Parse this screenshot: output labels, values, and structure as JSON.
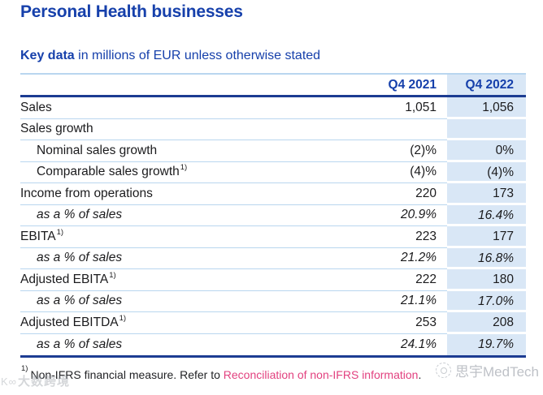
{
  "page": {
    "title": "Personal Health businesses"
  },
  "subtitle": {
    "bold": "Key data",
    "rest": " in millions of EUR unless otherwise stated"
  },
  "table": {
    "col_q4_2021": "Q4 2021",
    "col_q4_2022": "Q4 2022",
    "sup_mark": "1)",
    "rows": [
      {
        "label": "Sales",
        "q4_2021": "1,051",
        "q4_2022": "1,056"
      },
      {
        "label": "Sales growth",
        "q4_2021": "",
        "q4_2022": ""
      },
      {
        "label": "Nominal sales growth",
        "q4_2021": "(2)%",
        "q4_2022": "0%"
      },
      {
        "label": "Comparable sales growth",
        "q4_2021": "(4)%",
        "q4_2022": "(4)%"
      },
      {
        "label": "Income from operations",
        "q4_2021": "220",
        "q4_2022": "173"
      },
      {
        "label": "as a % of sales",
        "q4_2021": "20.9%",
        "q4_2022": "16.4%"
      },
      {
        "label": "EBITA",
        "q4_2021": "223",
        "q4_2022": "177"
      },
      {
        "label": "as a % of sales",
        "q4_2021": "21.2%",
        "q4_2022": "16.8%"
      },
      {
        "label": "Adjusted EBITA",
        "q4_2021": "222",
        "q4_2022": "180"
      },
      {
        "label": "as a % of sales",
        "q4_2021": "21.1%",
        "q4_2022": "17.0%"
      },
      {
        "label": "Adjusted EBITDA",
        "q4_2021": "253",
        "q4_2022": "208"
      },
      {
        "label": "as a % of sales",
        "q4_2021": "24.1%",
        "q4_2022": "19.7%"
      }
    ]
  },
  "footnote": {
    "sup": "1)",
    "text": "Non-IFRS financial measure. Refer to ",
    "link": "Reconciliation of non-IFRS information",
    "end": "."
  },
  "watermarks": {
    "bottom_left_logo": "K∞",
    "bottom_left": "大数跨境",
    "bottom_right": "思宇MedTech"
  },
  "colors": {
    "brand_blue": "#1640ab",
    "navy_rule": "#1c3c92",
    "light_blue_fill": "#d9e7f6",
    "separator_blue": "#b9d6ef",
    "link_pink": "#e2417f",
    "body_text": "#1b1b1d"
  }
}
